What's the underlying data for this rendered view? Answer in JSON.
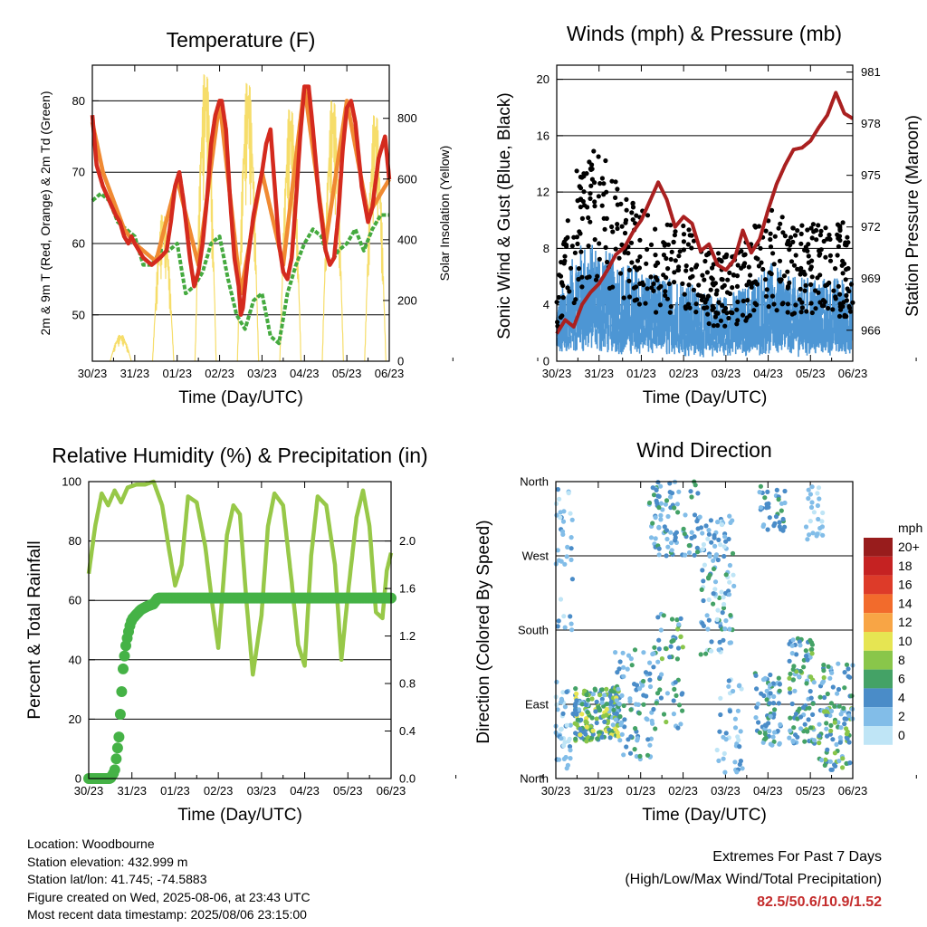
{
  "colors": {
    "temp_2m": "#d42a1e",
    "temp_9m": "#f08a32",
    "dewpoint": "#45aa3f",
    "solar": "#f6dd6a",
    "wind": "#4d96d4",
    "gust": "#000000",
    "pressure": "#aa2020",
    "rh": "#97c848",
    "precip": "#45b246",
    "extremes_text": "#c42c2c"
  },
  "legend": {
    "unit": "mph",
    "entries": [
      {
        "label": "20+",
        "color": "#981c1c"
      },
      {
        "label": "18",
        "color": "#c52222"
      },
      {
        "label": "16",
        "color": "#dd3b29"
      },
      {
        "label": "14",
        "color": "#f26b2c"
      },
      {
        "label": "12",
        "color": "#f8a545"
      },
      {
        "label": "10",
        "color": "#e6e552"
      },
      {
        "label": "8",
        "color": "#89c64a"
      },
      {
        "label": "6",
        "color": "#44a266"
      },
      {
        "label": "4",
        "color": "#4a8cc8"
      },
      {
        "label": "2",
        "color": "#82bde8"
      },
      {
        "label": "0",
        "color": "#bfe5f6"
      }
    ]
  },
  "chart_data": [
    {
      "id": "temperature",
      "type": "line",
      "title": "Temperature (F)",
      "xlabel": "Time (Day/UTC)",
      "ylabel": "2m & 9m T (Red, Orange) & 2m Td (Green)",
      "ylabel_right": "Solar Insolation (Yellow)",
      "x_tick_labels": [
        "30/23",
        "31/23",
        "01/23",
        "02/23",
        "03/23",
        "04/23",
        "05/23",
        "06/23"
      ],
      "ylim": [
        43.5,
        85
      ],
      "y_ticks": [
        50,
        60,
        70,
        80
      ],
      "ylim_right": [
        0,
        975
      ],
      "y_ticks_right": [
        0,
        200,
        400,
        600,
        800
      ],
      "grid": "horizontal",
      "series": [
        {
          "name": "2m T",
          "color": "#d42a1e",
          "t": [
            0,
            0.1,
            0.25,
            0.4,
            0.55,
            0.65,
            0.75,
            0.85,
            0.92,
            1.0,
            1.2,
            1.4,
            1.6,
            1.75,
            1.85,
            1.95,
            2.05,
            2.15,
            2.3,
            2.4,
            2.5,
            2.6,
            2.7,
            2.8,
            2.9,
            3.0,
            3.05,
            3.15,
            3.25,
            3.35,
            3.45,
            3.5,
            3.55,
            3.65,
            3.8,
            4.0,
            4.1,
            4.2,
            4.3,
            4.4,
            4.5,
            4.6,
            4.7,
            4.8,
            4.9,
            5.0,
            5.1,
            5.2,
            5.35,
            5.5,
            5.6,
            5.7,
            5.8,
            5.9,
            6.0,
            6.1,
            6.2,
            6.35,
            6.5,
            6.6,
            6.75,
            6.9,
            7.0
          ],
          "values": [
            78,
            71,
            68,
            66,
            64,
            63,
            61,
            60,
            61,
            60,
            58,
            57,
            58,
            59,
            63,
            68,
            70,
            66,
            58,
            54,
            56,
            60,
            66,
            74,
            78,
            80,
            80,
            76,
            66,
            58,
            54,
            50,
            51,
            57,
            64,
            70,
            74,
            76,
            68,
            60,
            56,
            55,
            58,
            66,
            75,
            82,
            82,
            76,
            66,
            59,
            57,
            58,
            64,
            73,
            79,
            80,
            77,
            68,
            63,
            65,
            72,
            75,
            69
          ]
        },
        {
          "name": "9m T",
          "color": "#f08a32",
          "t": [
            0,
            0.25,
            0.5,
            0.75,
            1.0,
            1.5,
            2.0,
            2.5,
            3.0,
            3.5,
            4.0,
            4.5,
            5.0,
            5.5,
            6.0,
            6.5,
            7.0
          ],
          "values": [
            77,
            70,
            66,
            62,
            60,
            57.5,
            69,
            57,
            80,
            53,
            70,
            57,
            82,
            60,
            80,
            64,
            69
          ]
        },
        {
          "name": "2m Td",
          "color": "#45aa3f",
          "t": [
            0,
            0.2,
            0.4,
            0.6,
            0.8,
            1.0,
            1.2,
            1.4,
            1.6,
            1.8,
            2.0,
            2.2,
            2.4,
            2.6,
            2.8,
            3.0,
            3.2,
            3.4,
            3.6,
            3.8,
            4.0,
            4.2,
            4.4,
            4.6,
            4.8,
            5.0,
            5.2,
            5.4,
            5.6,
            5.8,
            6.0,
            6.2,
            6.4,
            6.6,
            6.8,
            7.0
          ],
          "values": [
            66,
            67,
            66,
            63,
            62,
            61,
            57,
            57,
            59,
            59,
            60,
            53,
            54,
            56,
            60,
            61,
            55,
            50,
            48,
            52,
            53,
            47,
            46,
            53,
            57,
            60,
            62,
            61,
            57,
            59,
            60,
            62,
            59,
            62,
            64,
            64
          ]
        }
      ],
      "solar": {
        "name": "Solar Insolation",
        "color": "#f6dd6a",
        "days": [
          {
            "start": 0.42,
            "end": 0.92,
            "peak": 90
          },
          {
            "start": 1.42,
            "end": 1.92,
            "peak": 500
          },
          {
            "start": 2.42,
            "end": 2.92,
            "peak": 980
          },
          {
            "start": 3.42,
            "end": 3.92,
            "peak": 950
          },
          {
            "start": 4.42,
            "end": 4.92,
            "peak": 860
          },
          {
            "start": 5.42,
            "end": 5.92,
            "peak": 890
          },
          {
            "start": 6.42,
            "end": 6.92,
            "peak": 840
          }
        ]
      }
    },
    {
      "id": "winds",
      "type": "scatter",
      "title": "Winds (mph) & Pressure (mb)",
      "xlabel": "Time (Day/UTC)",
      "ylabel": "Sonic Wind & Gust (Blue, Black)",
      "ylabel_right": "Station Pressure (Maroon)",
      "x_tick_labels": [
        "30/23",
        "31/23",
        "01/23",
        "02/23",
        "03/23",
        "04/23",
        "05/23",
        "06/23"
      ],
      "ylim": [
        0,
        21
      ],
      "y_ticks": [
        0,
        4,
        8,
        12,
        16,
        20
      ],
      "ylim_right": [
        964.2,
        981.4
      ],
      "y_ticks_right": [
        966,
        969,
        972,
        975,
        978,
        981
      ],
      "grid": "horizontal",
      "wind_envelope": {
        "t": [
          0,
          0.5,
          1.0,
          1.5,
          2.0,
          2.5,
          3.0,
          3.5,
          4.0,
          4.5,
          5.0,
          5.5,
          6.0,
          6.5,
          7.0
        ],
        "gust": [
          6,
          13,
          14,
          11,
          10,
          9,
          9,
          7,
          7,
          8,
          10,
          9,
          9,
          9,
          9
        ],
        "wind": [
          3.5,
          7,
          7,
          6,
          5.5,
          5,
          5,
          4,
          4,
          4.5,
          6,
          5,
          5,
          5,
          5
        ]
      },
      "pressure": {
        "name": "Station Pressure",
        "color": "#aa2020",
        "t": [
          0,
          0.2,
          0.4,
          0.6,
          0.8,
          1.0,
          1.2,
          1.4,
          1.6,
          1.8,
          2.0,
          2.2,
          2.4,
          2.6,
          2.8,
          3.0,
          3.2,
          3.4,
          3.6,
          3.8,
          4.0,
          4.2,
          4.4,
          4.6,
          4.8,
          5.0,
          5.2,
          5.4,
          5.6,
          5.8,
          6.0,
          6.2,
          6.4,
          6.6,
          6.8,
          7.0
        ],
        "values": [
          965.8,
          966.6,
          966.2,
          967.5,
          968.2,
          968.7,
          969.5,
          970.4,
          970.8,
          971.7,
          972.4,
          973.5,
          974.6,
          973.6,
          972.0,
          972.6,
          972.2,
          970.6,
          971.0,
          969.8,
          969.5,
          970.1,
          971.8,
          970.5,
          971.3,
          973.0,
          974.5,
          975.6,
          976.5,
          976.6,
          977.0,
          977.8,
          978.5,
          979.8,
          978.6,
          978.3
        ]
      }
    },
    {
      "id": "humidity",
      "type": "line",
      "title": "Relative Humidity (%) & Precipitation (in)",
      "xlabel": "Time (Day/UTC)",
      "ylabel": "Percent & Total Rainfall",
      "x_tick_labels": [
        "30/23",
        "31/23",
        "01/23",
        "02/23",
        "03/23",
        "04/23",
        "05/23",
        "06/23"
      ],
      "ylim": [
        0,
        100
      ],
      "y_ticks": [
        0,
        20,
        40,
        60,
        80,
        100
      ],
      "ylim_right": [
        0,
        2.5
      ],
      "y_ticks_right_labels": [
        "0.0",
        "0.4",
        "0.8",
        "1.2",
        "1.6",
        "2.0"
      ],
      "grid": "horizontal",
      "series": [
        {
          "name": "RH",
          "color": "#97c848",
          "t": [
            0,
            0.15,
            0.3,
            0.45,
            0.6,
            0.75,
            0.9,
            1.1,
            1.3,
            1.5,
            1.7,
            1.85,
            2.0,
            2.15,
            2.3,
            2.5,
            2.7,
            2.85,
            3.0,
            3.2,
            3.35,
            3.5,
            3.65,
            3.8,
            4.0,
            4.15,
            4.3,
            4.5,
            4.7,
            4.85,
            5.0,
            5.15,
            5.3,
            5.5,
            5.7,
            5.85,
            6.0,
            6.2,
            6.35,
            6.5,
            6.65,
            6.8,
            6.9,
            7.0
          ],
          "values": [
            69,
            85,
            96,
            92,
            97,
            93,
            98,
            99,
            99,
            100,
            92,
            78,
            65,
            72,
            95,
            93,
            78,
            60,
            44,
            82,
            92,
            89,
            60,
            35,
            55,
            85,
            96,
            92,
            66,
            45,
            38,
            75,
            95,
            92,
            72,
            40,
            62,
            88,
            97,
            85,
            56,
            54,
            70,
            76
          ]
        },
        {
          "name": "Total Rainfall",
          "color": "#45b246",
          "t": [
            0,
            0.5,
            0.6,
            0.7,
            0.75,
            0.8,
            0.85,
            0.9,
            0.95,
            1.0,
            1.1,
            1.2,
            1.35,
            1.5,
            1.6,
            7.0
          ],
          "values": [
            0,
            0,
            0.06,
            0.35,
            0.65,
            0.95,
            1.1,
            1.2,
            1.28,
            1.34,
            1.38,
            1.42,
            1.45,
            1.47,
            1.52,
            1.52
          ]
        }
      ]
    },
    {
      "id": "wind_direction",
      "type": "scatter",
      "title": "Wind Direction",
      "xlabel": "Time (Day/UTC)",
      "ylabel": "Direction (Colored By Speed)",
      "x_tick_labels": [
        "30/23",
        "31/23",
        "01/23",
        "02/23",
        "03/23",
        "04/23",
        "05/23",
        "06/23"
      ],
      "ylim": [
        0,
        360
      ],
      "y_tick_labels": [
        "North",
        "East",
        "South",
        "West",
        "North"
      ],
      "grid": "horizontal",
      "clusters": [
        {
          "t0": 0.0,
          "t1": 0.35,
          "d0": 5,
          "d1": 120,
          "n": 40,
          "s": [
            0,
            4
          ]
        },
        {
          "t0": 0.0,
          "t1": 0.4,
          "d0": 180,
          "d1": 360,
          "n": 35,
          "s": [
            0,
            4
          ]
        },
        {
          "t0": 0.4,
          "t1": 1.5,
          "d0": 45,
          "d1": 110,
          "n": 190,
          "s": [
            2,
            10
          ]
        },
        {
          "t0": 1.4,
          "t1": 2.3,
          "d0": 20,
          "d1": 160,
          "n": 80,
          "s": [
            1,
            6
          ]
        },
        {
          "t0": 2.3,
          "t1": 3.0,
          "d0": 60,
          "d1": 200,
          "n": 60,
          "s": [
            2,
            8
          ]
        },
        {
          "t0": 2.2,
          "t1": 3.4,
          "d0": 270,
          "d1": 360,
          "n": 90,
          "s": [
            1,
            6
          ]
        },
        {
          "t0": 3.4,
          "t1": 4.2,
          "d0": 150,
          "d1": 320,
          "n": 110,
          "s": [
            0,
            6
          ]
        },
        {
          "t0": 3.8,
          "t1": 4.4,
          "d0": 5,
          "d1": 120,
          "n": 40,
          "s": [
            0,
            4
          ]
        },
        {
          "t0": 4.7,
          "t1": 5.3,
          "d0": 40,
          "d1": 130,
          "n": 70,
          "s": [
            1,
            7
          ]
        },
        {
          "t0": 4.8,
          "t1": 5.4,
          "d0": 300,
          "d1": 355,
          "n": 35,
          "s": [
            2,
            6
          ]
        },
        {
          "t0": 5.5,
          "t1": 6.1,
          "d0": 40,
          "d1": 170,
          "n": 100,
          "s": [
            1,
            8
          ]
        },
        {
          "t0": 5.9,
          "t1": 6.3,
          "d0": 290,
          "d1": 355,
          "n": 25,
          "s": [
            0,
            3
          ]
        },
        {
          "t0": 6.2,
          "t1": 7.0,
          "d0": 10,
          "d1": 140,
          "n": 110,
          "s": [
            1,
            8
          ]
        }
      ]
    }
  ],
  "info": {
    "location": "Location: Woodbourne",
    "elevation": "Station elevation: 432.999 m",
    "latlon": "Station lat/lon: 41.745; -74.5883",
    "created": "Figure created on Wed, 2025-08-06, at 23:43 UTC",
    "latest": "Most recent data timestamp: 2025/08/06 23:15:00"
  },
  "extremes": {
    "title": "Extremes For Past 7 Days",
    "subtitle": "(High/Low/Max Wind/Total Precipitation)",
    "values": "82.5/50.6/10.9/1.52"
  }
}
